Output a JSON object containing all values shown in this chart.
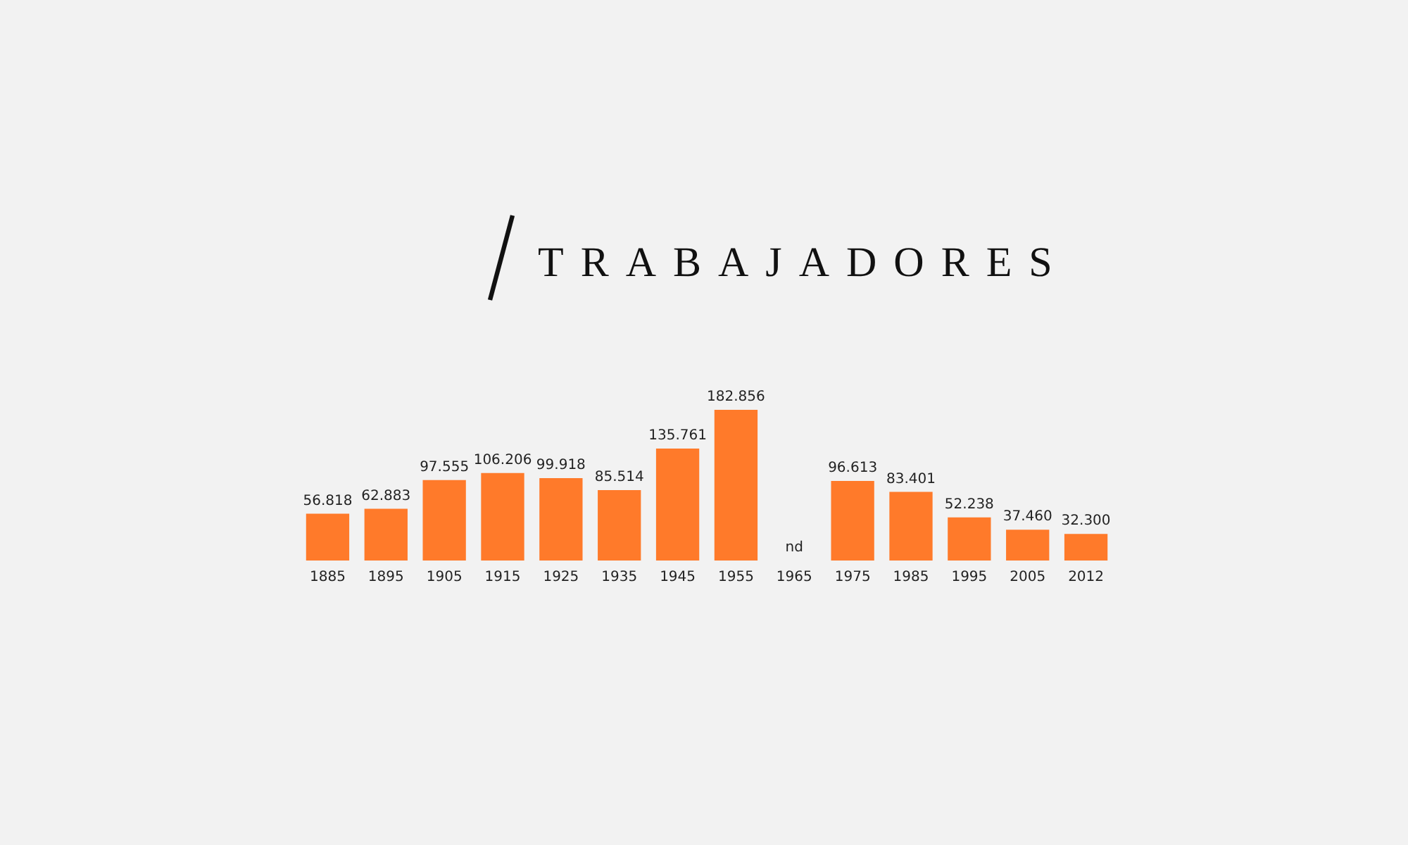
{
  "chart_data": {
    "type": "bar",
    "title": "TRABAJADORES",
    "categories": [
      "1885",
      "1895",
      "1905",
      "1915",
      "1925",
      "1935",
      "1945",
      "1955",
      "1965",
      "1975",
      "1985",
      "1995",
      "2005",
      "2012"
    ],
    "values": [
      56818,
      62883,
      97555,
      106206,
      99918,
      85514,
      135761,
      182856,
      null,
      96613,
      83401,
      52238,
      37460,
      32300
    ],
    "value_labels": [
      "56.818",
      "62.883",
      "97.555",
      "106.206",
      "99.918",
      "85.514",
      "135.761",
      "182.856",
      "nd",
      "96.613",
      "83.401",
      "52.238",
      "37.460",
      "32.300"
    ],
    "color": "#ff7a2a",
    "grid": false,
    "legend": false
  }
}
